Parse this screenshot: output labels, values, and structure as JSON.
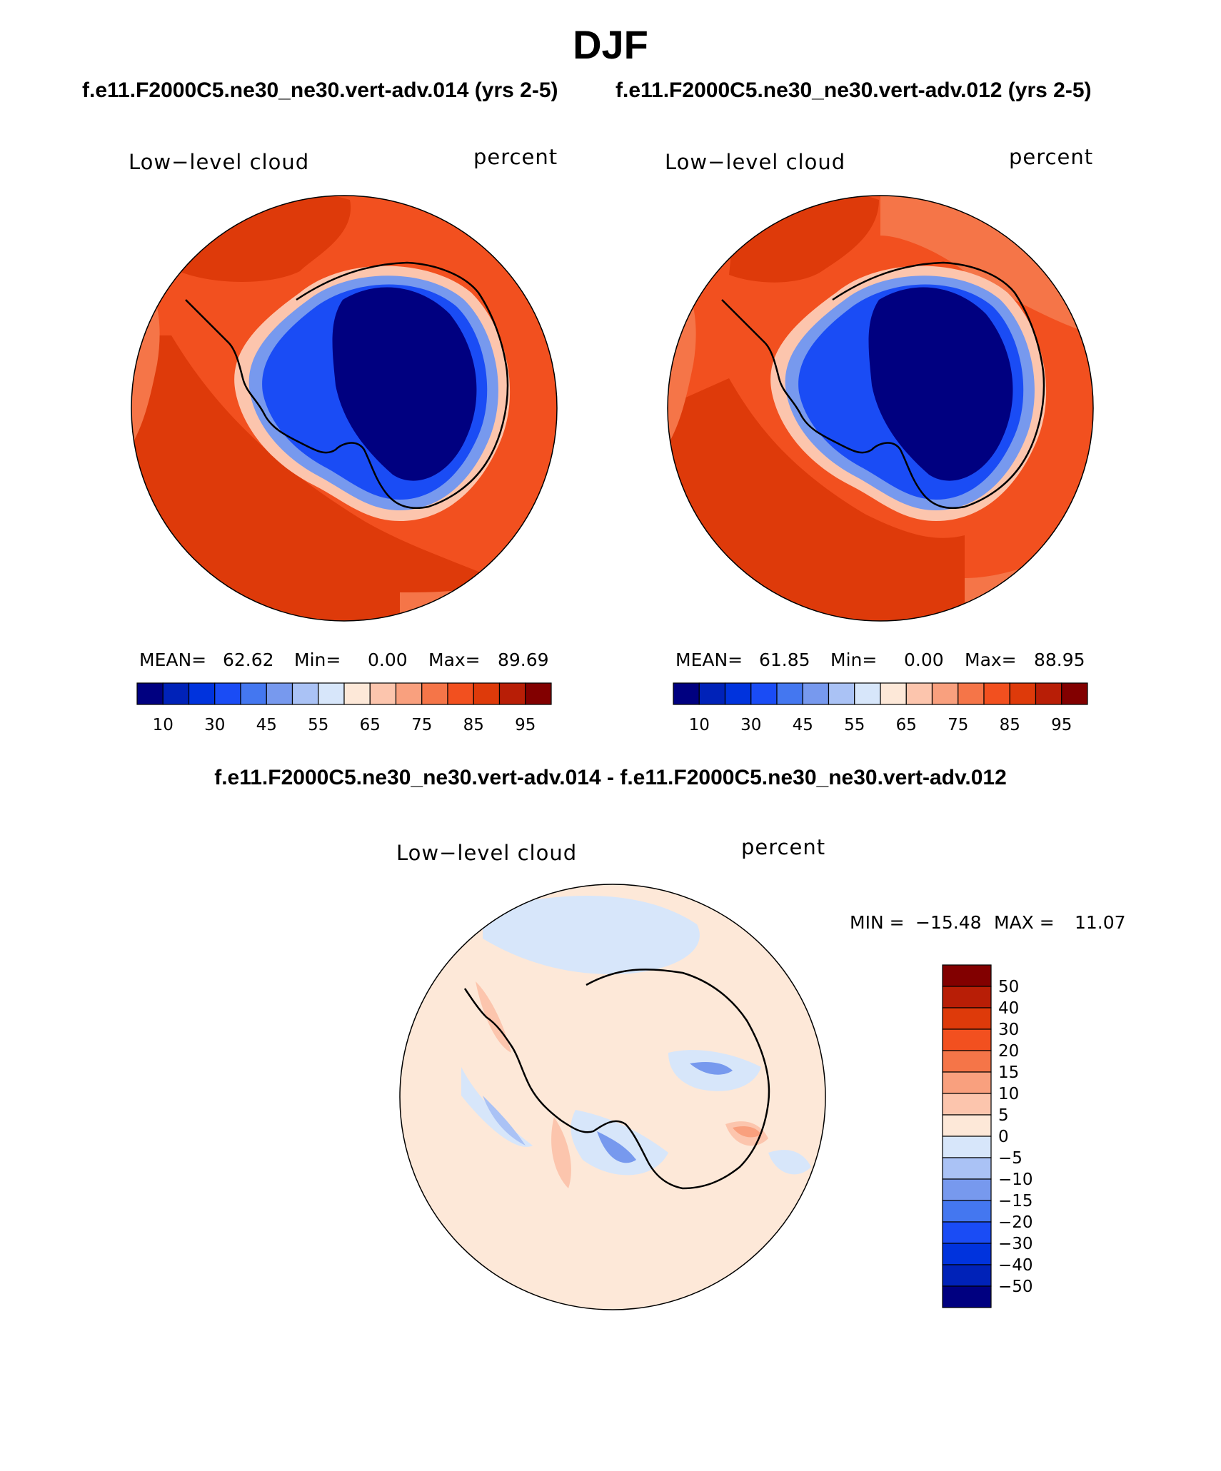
{
  "title": "DJF",
  "panels": [
    {
      "run_title": "f.e11.F2000C5.ne30_ne30.vert-adv.014 (yrs 2-5)",
      "variable": "Low−level cloud",
      "units": "percent",
      "stats": {
        "mean_label": "MEAN=",
        "mean": "62.62",
        "min_label": "Min=",
        "min": "0.00",
        "max_label": "Max=",
        "max": "89.69"
      }
    },
    {
      "run_title": "f.e11.F2000C5.ne30_ne30.vert-adv.012 (yrs 2-5)",
      "variable": "Low−level cloud",
      "units": "percent",
      "stats": {
        "mean_label": "MEAN=",
        "mean": "61.85",
        "min_label": "Min=",
        "min": "0.00",
        "max_label": "Max=",
        "max": "88.95"
      }
    }
  ],
  "abs_colorbar": {
    "colors": [
      "#000080",
      "#0022b8",
      "#0033dd",
      "#1a4cf5",
      "#4477f0",
      "#7799ee",
      "#aac2f5",
      "#d7e6fa",
      "#fde8d8",
      "#fcc5ad",
      "#f9a07e",
      "#f57548",
      "#f2501f",
      "#de3a0a",
      "#b81e06",
      "#820000"
    ],
    "labels": [
      "10",
      "30",
      "45",
      "55",
      "65",
      "75",
      "85",
      "95"
    ]
  },
  "diff": {
    "title": "f.e11.F2000C5.ne30_ne30.vert-adv.014 - f.e11.F2000C5.ne30_ne30.vert-adv.012",
    "variable": "Low−level cloud",
    "units": "percent",
    "stats": {
      "min_label": "MIN =",
      "min": "−15.48",
      "max_label": "MAX =",
      "max": "11.07"
    },
    "colorbar": {
      "colors": [
        "#820000",
        "#b81e06",
        "#de3a0a",
        "#f2501f",
        "#f57548",
        "#f9a07e",
        "#fcc5ad",
        "#fde8d8",
        "#d7e6fa",
        "#aac2f5",
        "#7799ee",
        "#4477f0",
        "#1a4cf5",
        "#0033dd",
        "#0022b8",
        "#000080"
      ],
      "labels": [
        "50",
        "40",
        "30",
        "20",
        "15",
        "10",
        "5",
        "0",
        "−5",
        "−10",
        "−15",
        "−20",
        "−30",
        "−40",
        "−50"
      ]
    }
  },
  "map_colors": {
    "ocean_dark": "#de3a0a",
    "ocean_mid": "#f2501f",
    "ocean_light": "#f57548",
    "coast_band": "#fcc5ad",
    "ice_edge": "#7799ee",
    "ice_mid": "#1a4cf5",
    "ice_core": "#000080",
    "diff_base": "#fde8d8",
    "diff_neg": "#d7e6fa",
    "diff_neg2": "#aac2f5",
    "diff_neg3": "#7799ee",
    "diff_pos": "#fcc5ad",
    "diff_pos2": "#f9a07e"
  }
}
